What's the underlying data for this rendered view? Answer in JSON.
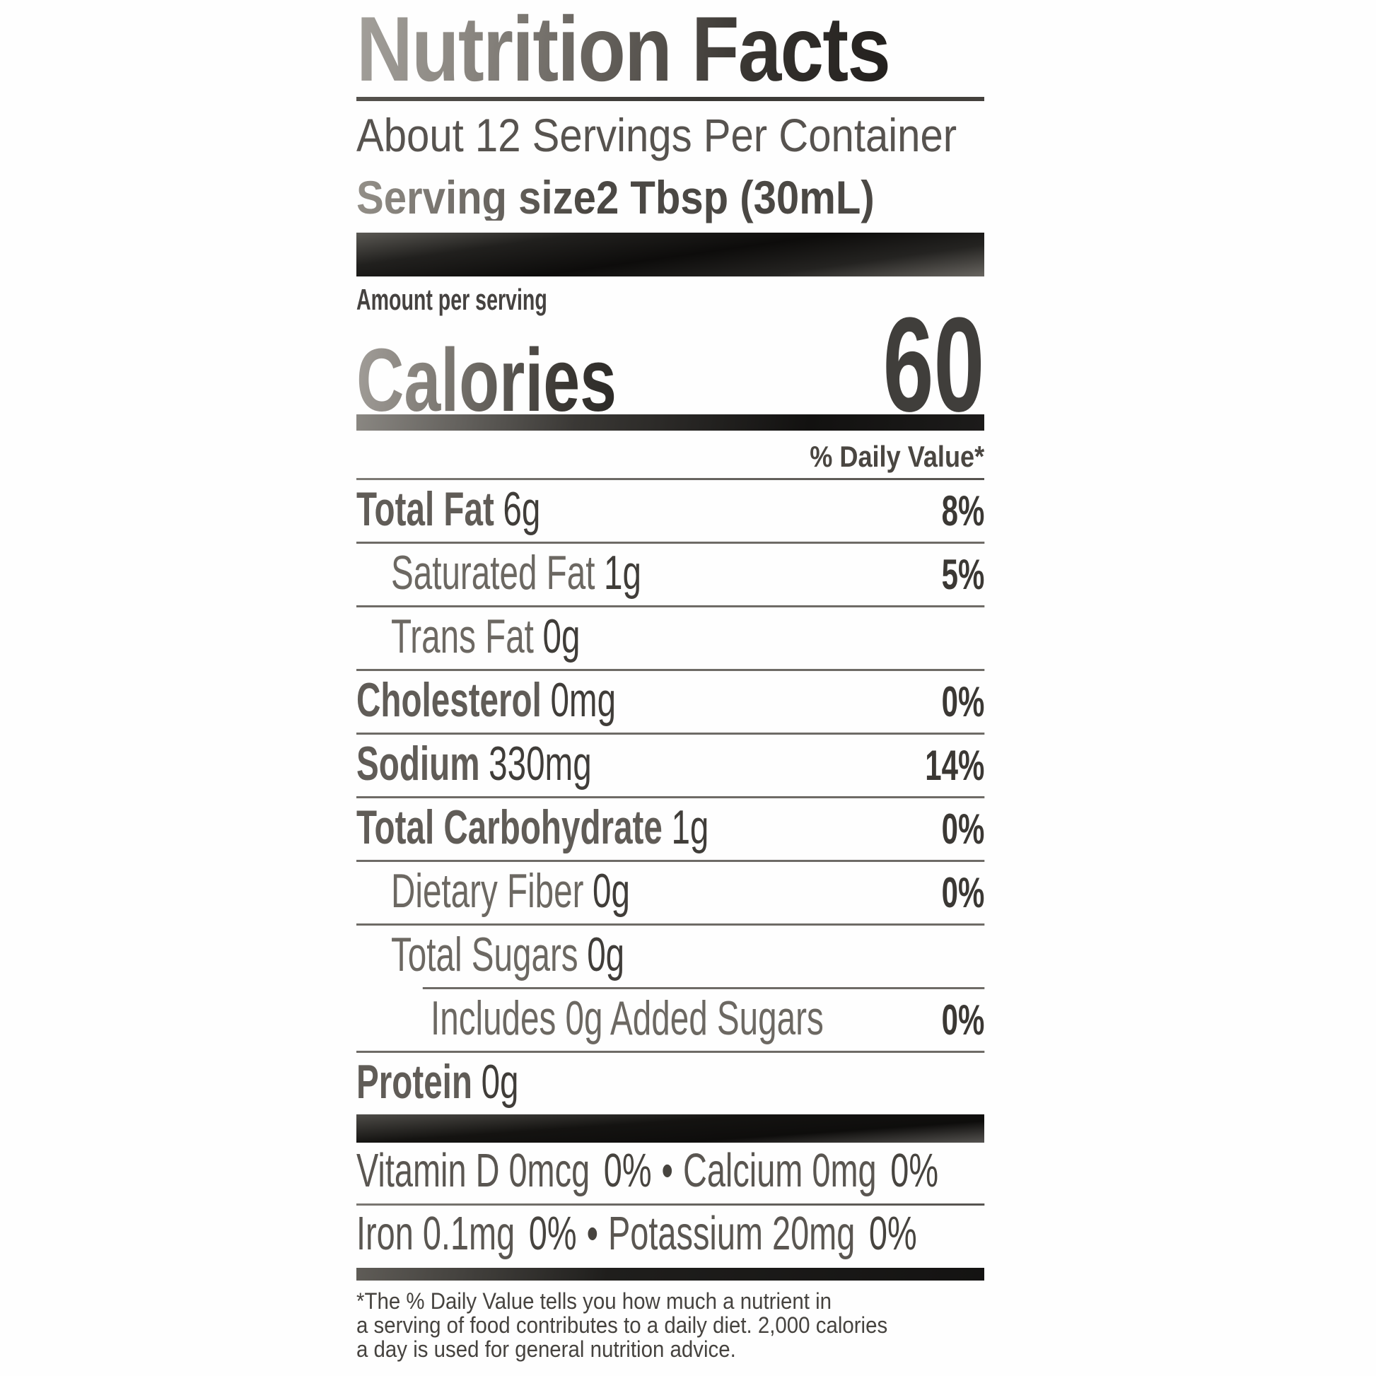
{
  "label": {
    "title": "Nutrition Facts",
    "servings_per_container": "About 12 Servings Per Container",
    "serving_size_label": "Serving size",
    "serving_size_value": "2 Tbsp (30mL)",
    "amount_per_serving": "Amount per serving",
    "calories_label": "Calories",
    "calories_value": "60",
    "daily_value_header": "% Daily Value*",
    "bullet": "•",
    "rows": [
      {
        "name": "Total Fat",
        "amount": "6g",
        "dv": "8%"
      },
      {
        "name": "Saturated Fat",
        "amount": "1g",
        "dv": "5%"
      },
      {
        "name": "Trans Fat",
        "amount": "0g",
        "dv": ""
      },
      {
        "name": "Cholesterol",
        "amount": "0mg",
        "dv": "0%"
      },
      {
        "name": "Sodium",
        "amount": "330mg",
        "dv": "14%"
      },
      {
        "name": "Total Carbohydrate",
        "amount": "1g",
        "dv": "0%"
      },
      {
        "name": "Dietary Fiber",
        "amount": "0g",
        "dv": "0%"
      },
      {
        "name": "Total Sugars",
        "amount": "0g",
        "dv": ""
      },
      {
        "name": "Includes 0g Added Sugars",
        "amount": "",
        "dv": "0%"
      },
      {
        "name": "Protein",
        "amount": "0g",
        "dv": ""
      }
    ],
    "micronutrients": [
      {
        "left": "Vitamin D 0mcg",
        "left_dv": "0%",
        "right": "Calcium 0mg",
        "right_dv": "0%"
      },
      {
        "left": "Iron 0.1mg",
        "left_dv": "0%",
        "right": "Potassium 20mg",
        "right_dv": "0%"
      }
    ],
    "footnote_lines": [
      "*The % Daily Value tells you how much a nutrient in",
      "a serving of food contributes to a daily diet. 2,000 calories",
      "a day is used for general nutrition advice."
    ]
  }
}
